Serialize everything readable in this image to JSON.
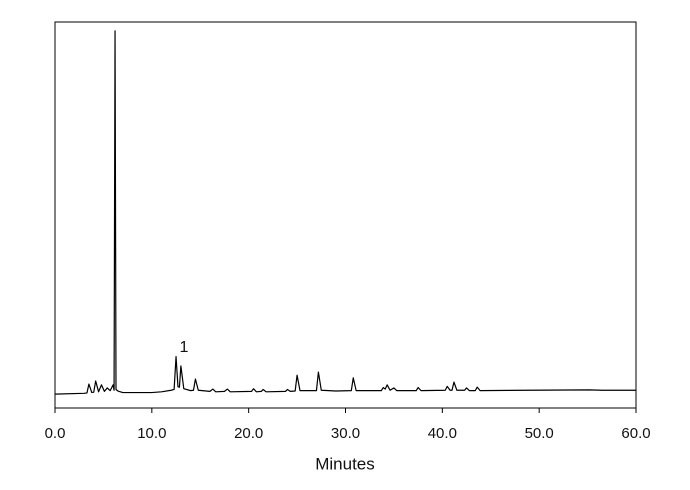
{
  "chart_data": {
    "type": "line",
    "xlabel": "Minutes",
    "annotations": [
      {
        "text": "1"
      }
    ],
    "color": "#000000",
    "xlim": [
      0,
      60
    ],
    "ylim": [
      0,
      100
    ],
    "xticks": [
      {
        "value": 0,
        "label": "0.0"
      },
      {
        "value": 10,
        "label": "10.0"
      },
      {
        "value": 20,
        "label": "20.0"
      },
      {
        "value": 30,
        "label": "30.0"
      },
      {
        "value": 40,
        "label": "40.0"
      },
      {
        "value": 50,
        "label": "50.0"
      },
      {
        "value": 60,
        "label": "60.0"
      }
    ],
    "x": [
      0,
      3.0,
      3.3,
      3.5,
      3.8,
      4.0,
      4.2,
      4.5,
      4.8,
      5.1,
      5.4,
      5.7,
      6.0,
      6.1,
      6.2,
      6.3,
      6.5,
      7.0,
      8.0,
      10.0,
      11.0,
      12.0,
      12.3,
      12.5,
      12.7,
      12.85,
      13.0,
      13.3,
      14.0,
      14.3,
      14.5,
      14.8,
      16.0,
      16.3,
      16.6,
      17.5,
      17.8,
      18.1,
      20.3,
      20.5,
      20.8,
      21.3,
      21.5,
      21.8,
      23.8,
      24.0,
      24.3,
      24.8,
      25.0,
      25.3,
      27.0,
      27.2,
      27.5,
      29.0,
      30.6,
      30.8,
      31.1,
      33.7,
      33.9,
      34.1,
      34.3,
      34.6,
      35.0,
      35.3,
      37.3,
      37.5,
      37.8,
      40.3,
      40.5,
      40.8,
      41.0,
      41.2,
      41.5,
      42.3,
      42.5,
      42.8,
      43.4,
      43.6,
      43.9,
      48.8,
      55.2,
      56.5,
      60
    ],
    "values": [
      3.6,
      3.8,
      3.9,
      6.2,
      4.0,
      4.1,
      7.0,
      4.2,
      6.0,
      4.3,
      5.2,
      4.5,
      6.0,
      4.6,
      97.7,
      4.8,
      4.4,
      4.0,
      4.0,
      4.0,
      4.2,
      4.6,
      4.8,
      13.3,
      5.5,
      5.4,
      10.9,
      5.0,
      4.5,
      4.6,
      7.5,
      4.6,
      4.3,
      4.9,
      4.2,
      4.3,
      4.9,
      4.2,
      4.3,
      5.0,
      4.2,
      4.3,
      4.8,
      4.2,
      4.3,
      4.8,
      4.3,
      4.4,
      8.5,
      4.5,
      4.5,
      9.3,
      4.6,
      4.4,
      4.5,
      7.8,
      4.5,
      4.5,
      5.3,
      4.9,
      6.0,
      4.6,
      5.2,
      4.5,
      4.5,
      5.3,
      4.5,
      4.6,
      5.6,
      4.6,
      4.6,
      6.7,
      4.6,
      4.6,
      5.2,
      4.5,
      4.5,
      5.4,
      4.5,
      4.6,
      4.7,
      4.6,
      4.6
    ]
  }
}
